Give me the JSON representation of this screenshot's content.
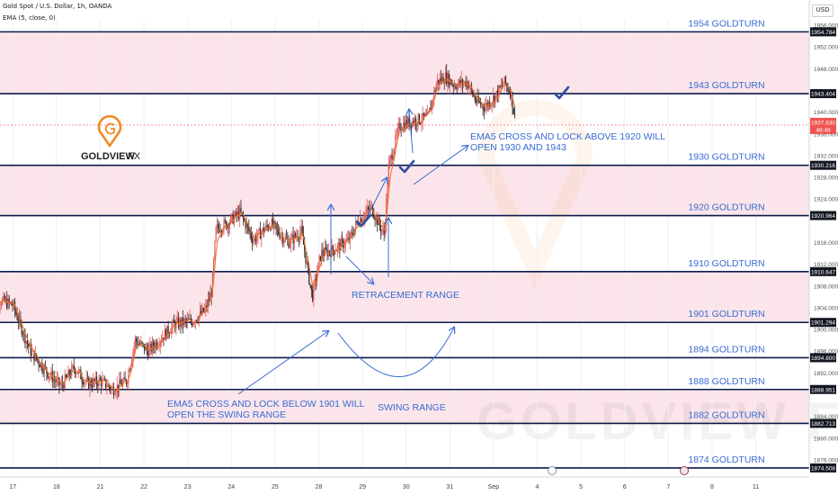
{
  "header": {
    "symbol_line": "Gold Spot / U.S. Dollar, 1h, OANDA",
    "indicator_line": "EMA (5, close, 0)",
    "currency_button": "USD"
  },
  "logo": {
    "text_main": "GOLDVIEW",
    "text_accent": "FX",
    "watermark": "GOLDVIEW FX"
  },
  "colors": {
    "zone": "#fbe5ea",
    "level_line": "#0c1a4a",
    "level_label": "#3a6bd3",
    "annotation": "#3a6bd3",
    "candle_up": "#ef5350",
    "ema": "#e8742a",
    "logo_orange": "#f08a24",
    "price_tag": "#131722",
    "current_tag": "#ef5350"
  },
  "chart_data": {
    "type": "candlestick",
    "title": "Gold Spot / U.S. Dollar, 1h, OANDA",
    "ylim": [
      1874.0,
      1957.0
    ],
    "y_ticks": [
      1956.0,
      1952.0,
      1948.0,
      1940.0,
      1936.0,
      1932.0,
      1928.0,
      1924.0,
      1916.0,
      1912.0,
      1908.0,
      1904.0,
      1900.0,
      1896.0,
      1892.0,
      1884.0,
      1880.0,
      1876.0
    ],
    "x_tick_labels": [
      {
        "label": "17",
        "pos": 0.5
      },
      {
        "label": "18",
        "pos": 1.5
      },
      {
        "label": "21",
        "pos": 2.5
      },
      {
        "label": "22",
        "pos": 3.5
      },
      {
        "label": "23",
        "pos": 4.5
      },
      {
        "label": "24",
        "pos": 5.5
      },
      {
        "label": "25",
        "pos": 6.5
      },
      {
        "label": "28",
        "pos": 7.5
      },
      {
        "label": "29",
        "pos": 8.5
      },
      {
        "label": "30",
        "pos": 9.5
      },
      {
        "label": "31",
        "pos": 10.5
      },
      {
        "label": "Sep",
        "pos": 11.5
      },
      {
        "label": "4",
        "pos": 12.5
      },
      {
        "label": "5",
        "pos": 13.5
      },
      {
        "label": "6",
        "pos": 14.5
      },
      {
        "label": "7",
        "pos": 15.5
      },
      {
        "label": "8",
        "pos": 16.5
      },
      {
        "label": "11",
        "pos": 17.5
      }
    ],
    "levels": [
      {
        "price": 1954.784,
        "label": "1954 GOLDTURN",
        "tag": "1954.784"
      },
      {
        "price": 1943.404,
        "label": "1943 GOLDTURN",
        "tag": "1943.404"
      },
      {
        "price": 1930.216,
        "label": "1930 GOLDTURN",
        "tag": "1930.216"
      },
      {
        "price": 1920.964,
        "label": "1920 GOLDTURN",
        "tag": "1920.964"
      },
      {
        "price": 1910.647,
        "label": "1910 GOLDTURN",
        "tag": "1910.647"
      },
      {
        "price": 1901.294,
        "label": "1901 GOLDTURN",
        "tag": "1901.294"
      },
      {
        "price": 1894.8,
        "label": "1894 GOLDTURN",
        "tag": "1894.800"
      },
      {
        "price": 1888.951,
        "label": "1888 GOLDTURN",
        "tag": "1888.951"
      },
      {
        "price": 1882.713,
        "label": "1882 GOLDTURN",
        "tag": "1882.713"
      },
      {
        "price": 1874.508,
        "label": "1874 GOLDTURN",
        "tag": "1874.508"
      }
    ],
    "zones": [
      [
        1943.404,
        1954.784
      ],
      [
        1920.964,
        1930.216
      ],
      [
        1901.294,
        1910.647
      ],
      [
        1882.713,
        1888.951
      ]
    ],
    "current_price": {
      "value": 1937.63,
      "tag": "1937.630",
      "countdown": "48:48"
    },
    "price_series": [
      [
        0,
        1906.0
      ],
      [
        0.5,
        1904.5
      ],
      [
        0.9,
        1896.0
      ],
      [
        1.3,
        1892.0
      ],
      [
        1.6,
        1889.5
      ],
      [
        1.9,
        1893.0
      ],
      [
        2.2,
        1890.0
      ],
      [
        2.5,
        1890.5
      ],
      [
        2.8,
        1889.0
      ],
      [
        3.1,
        1890.5
      ],
      [
        3.3,
        1898.0
      ],
      [
        3.6,
        1896.0
      ],
      [
        3.9,
        1898.5
      ],
      [
        4.2,
        1901.0
      ],
      [
        4.6,
        1901.5
      ],
      [
        4.9,
        1903.5
      ],
      [
        5.05,
        1907.0
      ],
      [
        5.15,
        1918.5
      ],
      [
        5.4,
        1919.5
      ],
      [
        5.7,
        1921.5
      ],
      [
        6.0,
        1916.5
      ],
      [
        6.4,
        1919.5
      ],
      [
        6.8,
        1916.0
      ],
      [
        7.1,
        1918.0
      ],
      [
        7.35,
        1906.0
      ],
      [
        7.55,
        1914.0
      ],
      [
        7.8,
        1914.5
      ],
      [
        8.2,
        1916.5
      ],
      [
        8.4,
        1920.0
      ],
      [
        8.7,
        1922.5
      ],
      [
        8.9,
        1919.0
      ],
      [
        9.0,
        1917.5
      ],
      [
        9.1,
        1930.0
      ],
      [
        9.35,
        1937.5
      ],
      [
        9.7,
        1938.5
      ],
      [
        10.0,
        1939.0
      ],
      [
        10.2,
        1945.5
      ],
      [
        10.4,
        1946.5
      ],
      [
        10.6,
        1945.0
      ],
      [
        10.9,
        1945.5
      ],
      [
        11.1,
        1942.0
      ],
      [
        11.3,
        1941.0
      ],
      [
        11.55,
        1943.0
      ],
      [
        11.75,
        1945.5
      ],
      [
        11.9,
        1943.5
      ],
      [
        12.0,
        1938.0
      ]
    ],
    "ema": {
      "name": "EMA (5, close, 0)",
      "period": 5
    }
  },
  "annotations": {
    "ema_above": "EMA5 CROSS AND LOCK ABOVE 1920 WILL\nOPEN 1930 AND 1943",
    "ema_below": "EMA5 CROSS AND LOCK BELOW 1901 WILL\nOPEN THE SWING RANGE",
    "retracement": "RETRACEMENT RANGE",
    "swing": "SWING RANGE"
  }
}
